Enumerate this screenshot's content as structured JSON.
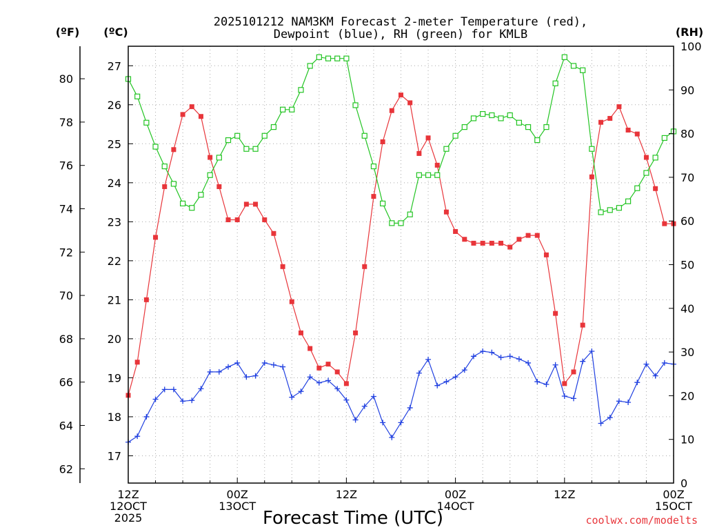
{
  "chart_data": {
    "type": "line",
    "title_line1": "2025101212 NAM3KM Forecast 2-meter Temperature (red),",
    "title_line2": "Dewpoint (blue), RH (green) for KMLB",
    "xlabel": "Forecast Time (UTC)",
    "credit": "coolwx.com/modelts",
    "axis_left_outer_unit": "(ºF)",
    "axis_left_inner_unit": "(ºC)",
    "axis_right_unit": "(RH)",
    "x_range_hours": [
      0,
      60
    ],
    "celsius_range": [
      16.3,
      27.5
    ],
    "fahrenheit_ticks": [
      62,
      64,
      66,
      68,
      70,
      72,
      74,
      76,
      78,
      80
    ],
    "celsius_ticks": [
      17,
      18,
      19,
      20,
      21,
      22,
      23,
      24,
      25,
      26,
      27
    ],
    "rh_ticks": [
      0,
      10,
      20,
      30,
      40,
      50,
      60,
      70,
      80,
      90,
      100
    ],
    "grid": true,
    "x_ticks": [
      {
        "hour": 0,
        "lines": [
          "12Z",
          "12OCT",
          "2025"
        ]
      },
      {
        "hour": 12,
        "lines": [
          "00Z",
          "13OCT"
        ]
      },
      {
        "hour": 24,
        "lines": [
          "12Z",
          ""
        ]
      },
      {
        "hour": 36,
        "lines": [
          "00Z",
          "14OCT"
        ]
      },
      {
        "hour": 48,
        "lines": [
          "12Z",
          ""
        ]
      },
      {
        "hour": 60,
        "lines": [
          "00Z",
          "15OCT"
        ]
      }
    ],
    "series": [
      {
        "name": "Temperature",
        "unit": "celsius",
        "color": "#e8353a",
        "marker": "filled-square",
        "values": [
          18.55,
          19.4,
          21.0,
          22.6,
          23.9,
          24.85,
          25.75,
          25.95,
          25.7,
          24.65,
          23.9,
          23.05,
          23.05,
          23.45,
          23.45,
          23.05,
          22.7,
          21.85,
          20.95,
          20.15,
          19.75,
          19.25,
          19.35,
          19.15,
          18.85,
          20.15,
          21.85,
          23.65,
          25.05,
          25.85,
          26.25,
          26.05,
          24.75,
          25.15,
          24.45,
          23.25,
          22.75,
          22.55,
          22.45,
          22.45,
          22.45,
          22.45,
          22.35,
          22.55,
          22.65,
          22.65,
          22.15,
          20.65,
          18.85,
          19.15,
          20.35,
          24.15,
          25.55,
          25.65,
          25.95,
          25.35,
          25.25,
          24.65,
          23.85,
          22.95,
          22.95
        ]
      },
      {
        "name": "Dewpoint",
        "unit": "celsius",
        "color": "#1f3fe0",
        "marker": "plus",
        "values": [
          17.35,
          17.5,
          18.0,
          18.45,
          18.7,
          18.7,
          18.4,
          18.42,
          18.72,
          19.15,
          19.15,
          19.28,
          19.38,
          19.02,
          19.05,
          19.38,
          19.33,
          19.28,
          18.5,
          18.65,
          19.02,
          18.87,
          18.93,
          18.72,
          18.43,
          17.92,
          18.27,
          18.52,
          17.85,
          17.47,
          17.85,
          18.23,
          19.12,
          19.47,
          18.8,
          18.9,
          19.02,
          19.2,
          19.55,
          19.68,
          19.65,
          19.52,
          19.55,
          19.48,
          19.38,
          18.9,
          18.83,
          19.33,
          18.53,
          18.47,
          19.42,
          19.68,
          17.83,
          17.98,
          18.4,
          18.37,
          18.88,
          19.35,
          19.05,
          19.38,
          19.35
        ]
      },
      {
        "name": "RH",
        "unit": "percent",
        "color": "#22c422",
        "marker": "open-square",
        "values": [
          92.5,
          88.5,
          82.5,
          77,
          72.5,
          68.5,
          64.0,
          63.0,
          66.0,
          70.5,
          74.5,
          78.5,
          79.5,
          76.5,
          76.5,
          79.5,
          81.5,
          85.5,
          85.5,
          90.0,
          95.5,
          97.5,
          97.2,
          97.2,
          97.2,
          86.5,
          79.5,
          72.5,
          64.0,
          59.5,
          59.5,
          61.5,
          70.5,
          70.5,
          70.5,
          76.5,
          79.5,
          81.5,
          83.5,
          84.5,
          84.2,
          83.5,
          84.2,
          82.5,
          81.5,
          78.5,
          81.5,
          91.5,
          97.5,
          95.5,
          94.5,
          76.5,
          62.0,
          62.5,
          63.0,
          64.5,
          67.5,
          71.0,
          74.5,
          79.0,
          80.5
        ]
      }
    ]
  }
}
